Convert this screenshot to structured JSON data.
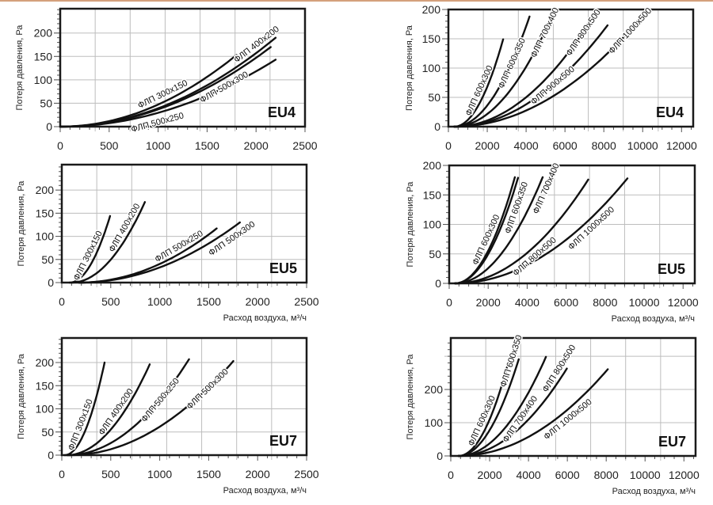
{
  "chart_data": [
    {
      "type": "line",
      "title": "EU4",
      "xlabel": "",
      "ylabel": "Потеря давления, Ра",
      "xlim": [
        0,
        2500
      ],
      "ylim": [
        0,
        252
      ],
      "xticks": [
        0,
        500,
        1000,
        1500,
        2000,
        2500
      ],
      "yticks": [
        0,
        50,
        100,
        150,
        200
      ],
      "ygrid": [
        50,
        100,
        150,
        200
      ],
      "series": [
        {
          "name": "ФЛП 300x150",
          "start": [
            0,
            0
          ],
          "mid": [
            900,
            38
          ],
          "end": [
            1800,
            153
          ]
        },
        {
          "name": "ФЛП 400x200",
          "start": [
            0,
            0
          ],
          "mid": [
            1100,
            48
          ],
          "end": [
            2200,
            190
          ]
        },
        {
          "name": "ФЛП 500x300",
          "start": [
            0,
            0
          ],
          "mid": [
            1075,
            43
          ],
          "end": [
            2150,
            170
          ]
        },
        {
          "name": "ФЛП 500x250",
          "start": [
            0,
            0
          ],
          "mid": [
            1100,
            36
          ],
          "end": [
            2200,
            143
          ]
        }
      ]
    },
    {
      "type": "line",
      "title": "EU4",
      "xlabel": "",
      "ylabel": "Потеря давления, Ра",
      "xlim": [
        0,
        12600
      ],
      "ylim": [
        0,
        200
      ],
      "xticks": [
        0,
        2000,
        4000,
        6000,
        8000,
        10000,
        12000
      ],
      "yticks": [
        0,
        50,
        100,
        150,
        200
      ],
      "ygrid": [
        50,
        100,
        150
      ],
      "series": [
        {
          "name": "ФЛП 600x300",
          "start": [
            300,
            0
          ],
          "mid": [
            1560,
            37
          ],
          "end": [
            2816,
            149
          ]
        },
        {
          "name": "ФЛП 600x350",
          "start": [
            300,
            0
          ],
          "mid": [
            2240,
            47
          ],
          "end": [
            4177,
            188
          ]
        },
        {
          "name": "ФЛП 700x400",
          "start": [
            300,
            0
          ],
          "mid": [
            2770,
            46
          ],
          "end": [
            5238,
            182
          ]
        },
        {
          "name": "ФЛП 800x500",
          "start": [
            300,
            0
          ],
          "mid": [
            3820,
            46
          ],
          "end": [
            7347,
            182
          ]
        },
        {
          "name": "ФЛП 900x500",
          "start": [
            300,
            0
          ],
          "mid": [
            4245,
            43
          ],
          "end": [
            8190,
            173
          ]
        },
        {
          "name": "ФЛП 1000x500",
          "start": [
            300,
            0
          ],
          "mid": [
            5010,
            45
          ],
          "end": [
            9714,
            178
          ]
        }
      ]
    },
    {
      "type": "line",
      "title": "EU5",
      "xlabel": "Расход воздуха, м³/ч",
      "ylabel": "Потеря давления, Ра",
      "xlim": [
        0,
        2500
      ],
      "ylim": [
        0,
        255
      ],
      "xticks": [
        0,
        500,
        1000,
        1500,
        2000,
        2500
      ],
      "yticks": [
        0,
        50,
        100,
        150,
        200
      ],
      "ygrid": [
        50,
        100,
        150,
        200
      ],
      "series": [
        {
          "name": "ФЛП 300x150",
          "start": [
            80,
            0
          ],
          "mid": [
            287,
            36
          ],
          "end": [
            493,
            144
          ]
        },
        {
          "name": "ФЛП 400x200",
          "start": [
            100,
            0
          ],
          "mid": [
            475,
            44
          ],
          "end": [
            849,
            174
          ]
        },
        {
          "name": "ФЛП 500x250",
          "start": [
            175,
            0
          ],
          "mid": [
            880,
            29
          ],
          "end": [
            1582,
            117
          ]
        },
        {
          "name": "ФЛП 500x300",
          "start": [
            175,
            0
          ],
          "mid": [
            997,
            33
          ],
          "end": [
            1819,
            130
          ]
        }
      ]
    },
    {
      "type": "line",
      "title": "EU5",
      "xlabel": "Расход воздуха, м³/ч",
      "ylabel": "Потеря давления, Ра",
      "xlim": [
        0,
        12600
      ],
      "ylim": [
        0,
        200
      ],
      "xticks": [
        0,
        2000,
        4000,
        6000,
        8000,
        10000,
        12000
      ],
      "yticks": [
        0,
        50,
        100,
        150,
        200
      ],
      "ygrid": [
        50,
        100,
        150
      ],
      "series": [
        {
          "name": "ФЛП 600x300",
          "start": [
            300,
            0
          ],
          "mid": [
            1835,
            45
          ],
          "end": [
            3370,
            180
          ]
        },
        {
          "name": "ФЛП 600x350",
          "start": [
            300,
            0
          ],
          "mid": [
            1917,
            45
          ],
          "end": [
            3533,
            179
          ]
        },
        {
          "name": "ФЛП 700x400",
          "start": [
            300,
            0
          ],
          "mid": [
            2548,
            45
          ],
          "end": [
            4796,
            180
          ]
        },
        {
          "name": "ФЛП 800x500",
          "start": [
            300,
            0
          ],
          "mid": [
            3717,
            44
          ],
          "end": [
            7133,
            176
          ]
        },
        {
          "name": "ФЛП 1000x500",
          "start": [
            300,
            0
          ],
          "mid": [
            4722,
            45
          ],
          "end": [
            9144,
            178
          ]
        }
      ]
    },
    {
      "type": "line",
      "title": "EU7",
      "xlabel": "Расход воздуха, м³/ч",
      "ylabel": "Потеря давления, Ра",
      "xlim": [
        0,
        2500
      ],
      "ylim": [
        0,
        253
      ],
      "xticks": [
        0,
        500,
        1000,
        1500,
        2000,
        2500
      ],
      "yticks": [
        0,
        50,
        100,
        150,
        200
      ],
      "ygrid": [
        50,
        100,
        150,
        200
      ],
      "series": [
        {
          "name": "ФЛП 300x150",
          "start": [
            30,
            0
          ],
          "mid": [
            234,
            50
          ],
          "end": [
            437,
            200
          ]
        },
        {
          "name": "ФЛП 400x200",
          "start": [
            50,
            0
          ],
          "mid": [
            474,
            49
          ],
          "end": [
            898,
            196
          ]
        },
        {
          "name": "ФЛП 500x250",
          "start": [
            60,
            0
          ],
          "mid": [
            680,
            52
          ],
          "end": [
            1299,
            207
          ]
        },
        {
          "name": "ФЛП 500x300",
          "start": [
            80,
            0
          ],
          "mid": [
            916,
            51
          ],
          "end": [
            1752,
            203
          ]
        }
      ]
    },
    {
      "type": "line",
      "title": "EU7",
      "xlabel": "Расход воздуха, м³/ч",
      "ylabel": "Потеря давления, Ра",
      "xlim": [
        0,
        12600
      ],
      "ylim": [
        0,
        355
      ],
      "xticks": [
        0,
        2000,
        4000,
        6000,
        8000,
        10000,
        12000
      ],
      "yticks": [
        0,
        100,
        200
      ],
      "ygrid": [
        100,
        200,
        300
      ],
      "series": [
        {
          "name": "ФЛП 600x300",
          "start": [
            400,
            0
          ],
          "mid": [
            1656,
            68
          ],
          "end": [
            2912,
            271
          ]
        },
        {
          "name": "ФЛП 600x350",
          "start": [
            400,
            0
          ],
          "mid": [
            1950,
            73
          ],
          "end": [
            3497,
            291
          ]
        },
        {
          "name": "ФЛП 700x400",
          "start": [
            400,
            0
          ],
          "mid": [
            2650,
            75
          ],
          "end": [
            4898,
            298
          ]
        },
        {
          "name": "ФЛП 800x500",
          "start": [
            400,
            0
          ],
          "mid": [
            3187,
            66
          ],
          "end": [
            5973,
            263
          ]
        },
        {
          "name": "ФЛП 1000x500",
          "start": [
            400,
            0
          ],
          "mid": [
            4241,
            65
          ],
          "end": [
            8082,
            261
          ]
        }
      ]
    }
  ]
}
